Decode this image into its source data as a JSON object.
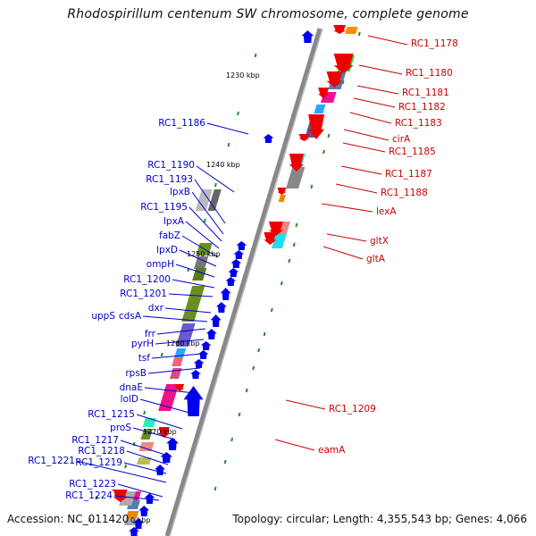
{
  "title": "Rhodospirillum centenum SW chromosome, complete genome",
  "footer": {
    "accession": "Accession: NC_011420",
    "topology": "Topology: circular; Length: 4,355,543 bp; Genes: 4,066"
  },
  "scale_labels": [
    "1230 kbp",
    "1240 kbp",
    "1250 kbp",
    "1260 kbp",
    "1270 kbp",
    "0 kbp"
  ],
  "colors": {
    "forward_strand": "#0000ee",
    "reverse_strand": "#ee0000",
    "backbone": "#888888"
  },
  "left_labels": [
    "RC1_1186",
    "RC1_1190",
    "RC1_1193",
    "lpxB",
    "RC1_1195",
    "lpxA",
    "fabZ",
    "lpxD",
    "ompH",
    "RC1_1200",
    "RC1_1201",
    "dxr",
    "uppS",
    "cdsA",
    "frr",
    "pyrH",
    "tsf",
    "rpsB",
    "dnaE",
    "lolD",
    "RC1_1215",
    "proS",
    "RC1_1217",
    "RC1_1218",
    "RC1_1221",
    "RC1_1219",
    "RC1_1223",
    "RC1_1224"
  ],
  "right_labels": [
    "RC1_1178",
    "RC1_1180",
    "RC1_1181",
    "RC1_1182",
    "RC1_1183",
    "cirA",
    "RC1_1185",
    "RC1_1187",
    "RC1_1188",
    "lexA",
    "gltX",
    "gltA",
    "RC1_1209",
    "eamA"
  ]
}
